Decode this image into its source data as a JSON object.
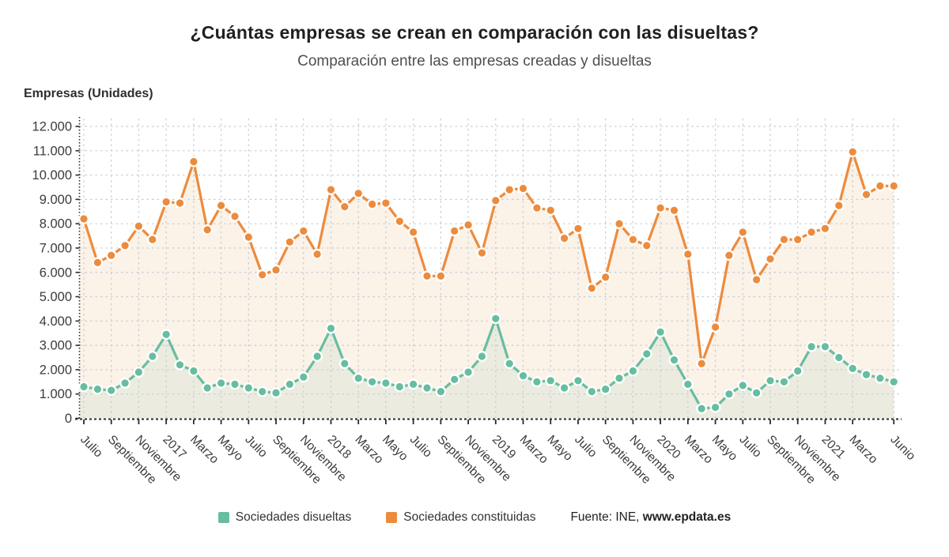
{
  "title": "¿Cuántas empresas se crean en comparación con las disueltas?",
  "subtitle": "Comparación entre las empresas creadas y disueltas",
  "y_axis_title": "Empresas (Unidades)",
  "legend": {
    "disueltas_label": "Sociedades disueltas",
    "constituidas_label": "Sociedades constituidas"
  },
  "source": {
    "prefix": "Fuente: INE, ",
    "site": "www.epdata.es"
  },
  "colors": {
    "constituidas": "#ED8B3D",
    "disueltas": "#67BDA0",
    "constituidas_fill": "#FBF2E8",
    "disueltas_fill": "#EBEBE0",
    "grid": "#C7CCD6",
    "axis": "#2B2B2B",
    "tick_text": "#3C3C3C",
    "marker_halo": "#FFFFFF"
  },
  "chart_data": {
    "type": "line",
    "title": "¿Cuántas empresas se crean en comparación con las disueltas?",
    "subtitle": "Comparación entre las empresas creadas y disueltas",
    "ylabel": "Empresas (Unidades)",
    "xlabel": "",
    "ylim": [
      0,
      12000
    ],
    "ytick_step": 1000,
    "grid": true,
    "legend_position": "bottom",
    "y_tick_labels": [
      "0",
      "1.000",
      "2.000",
      "3.000",
      "4.000",
      "5.000",
      "6.000",
      "7.000",
      "8.000",
      "9.000",
      "10.000",
      "11.000",
      "12.000"
    ],
    "categories": [
      "2016-07",
      "2016-08",
      "2016-09",
      "2016-10",
      "2016-11",
      "2016-12",
      "2017-01",
      "2017-02",
      "2017-03",
      "2017-04",
      "2017-05",
      "2017-06",
      "2017-07",
      "2017-08",
      "2017-09",
      "2017-10",
      "2017-11",
      "2017-12",
      "2018-01",
      "2018-02",
      "2018-03",
      "2018-04",
      "2018-05",
      "2018-06",
      "2018-07",
      "2018-08",
      "2018-09",
      "2018-10",
      "2018-11",
      "2018-12",
      "2019-01",
      "2019-02",
      "2019-03",
      "2019-04",
      "2019-05",
      "2019-06",
      "2019-07",
      "2019-08",
      "2019-09",
      "2019-10",
      "2019-11",
      "2019-12",
      "2020-01",
      "2020-02",
      "2020-03",
      "2020-04",
      "2020-05",
      "2020-06",
      "2020-07",
      "2020-08",
      "2020-09",
      "2020-10",
      "2020-11",
      "2020-12",
      "2021-01",
      "2021-02",
      "2021-03",
      "2021-04",
      "2021-05",
      "2021-06"
    ],
    "x_tick_labels": [
      {
        "i": 0,
        "label": "Julio"
      },
      {
        "i": 2,
        "label": "Septiembre"
      },
      {
        "i": 4,
        "label": "Noviembre"
      },
      {
        "i": 6,
        "label": "2017"
      },
      {
        "i": 8,
        "label": "Marzo"
      },
      {
        "i": 10,
        "label": "Mayo"
      },
      {
        "i": 12,
        "label": "Julio"
      },
      {
        "i": 14,
        "label": "Septiembre"
      },
      {
        "i": 16,
        "label": "Noviembre"
      },
      {
        "i": 18,
        "label": "2018"
      },
      {
        "i": 20,
        "label": "Marzo"
      },
      {
        "i": 22,
        "label": "Mayo"
      },
      {
        "i": 24,
        "label": "Julio"
      },
      {
        "i": 26,
        "label": "Septiembre"
      },
      {
        "i": 28,
        "label": "Noviembre"
      },
      {
        "i": 30,
        "label": "2019"
      },
      {
        "i": 32,
        "label": "Marzo"
      },
      {
        "i": 34,
        "label": "Mayo"
      },
      {
        "i": 36,
        "label": "Julio"
      },
      {
        "i": 38,
        "label": "Septiembre"
      },
      {
        "i": 40,
        "label": "Noviembre"
      },
      {
        "i": 42,
        "label": "2020"
      },
      {
        "i": 44,
        "label": "Marzo"
      },
      {
        "i": 46,
        "label": "Mayo"
      },
      {
        "i": 48,
        "label": "Julio"
      },
      {
        "i": 50,
        "label": "Septiembre"
      },
      {
        "i": 52,
        "label": "Noviembre"
      },
      {
        "i": 54,
        "label": "2021"
      },
      {
        "i": 56,
        "label": "Marzo"
      },
      {
        "i": 59,
        "label": "Junio"
      }
    ],
    "series": [
      {
        "name": "Sociedades constituidas",
        "values": [
          8200,
          6400,
          6700,
          7100,
          7900,
          7350,
          8900,
          8850,
          10550,
          7750,
          8750,
          8300,
          7450,
          5900,
          6100,
          7250,
          7700,
          6750,
          9400,
          8700,
          9250,
          8800,
          8850,
          8100,
          7650,
          5850,
          5850,
          7700,
          7950,
          6800,
          8950,
          9400,
          9450,
          8650,
          8550,
          7400,
          7800,
          5350,
          5800,
          8000,
          7350,
          7100,
          8650,
          8550,
          6750,
          2250,
          3750,
          6700,
          7650,
          5700,
          6550,
          7350,
          7350,
          7650,
          7800,
          8750,
          10950,
          9200,
          9550,
          9550
        ]
      },
      {
        "name": "Sociedades disueltas",
        "values": [
          1300,
          1200,
          1150,
          1450,
          1900,
          2550,
          3450,
          2200,
          1950,
          1250,
          1450,
          1400,
          1250,
          1100,
          1050,
          1400,
          1700,
          2550,
          3700,
          2250,
          1650,
          1500,
          1450,
          1300,
          1400,
          1250,
          1100,
          1600,
          1900,
          2550,
          4100,
          2250,
          1750,
          1500,
          1550,
          1250,
          1550,
          1100,
          1200,
          1650,
          1950,
          2650,
          3550,
          2400,
          1400,
          400,
          450,
          1000,
          1350,
          1050,
          1550,
          1500,
          1950,
          2950,
          2950,
          2500,
          2050,
          1800,
          1650,
          1500
        ]
      }
    ]
  }
}
